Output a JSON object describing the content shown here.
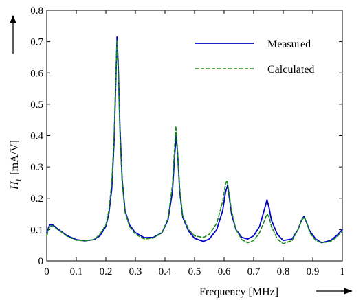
{
  "chart_data": {
    "type": "line",
    "title": "",
    "xlabel": "Frequency [MHz]",
    "ylabel_symbol": "H",
    "ylabel_subscript": "I",
    "ylabel_unit": "[mA/V]",
    "xlim": [
      0,
      1
    ],
    "ylim": [
      0,
      0.8
    ],
    "xticks": [
      0,
      0.1,
      0.2,
      0.3,
      0.4,
      0.5,
      0.6,
      0.7,
      0.8,
      0.9,
      1
    ],
    "xtick_labels": [
      "0",
      "0.1",
      "0.2",
      "0.3",
      "0.4",
      "0.5",
      "0.6",
      "0.7",
      "0.8",
      "0.9",
      "1"
    ],
    "yticks": [
      0,
      0.1,
      0.2,
      0.3,
      0.4,
      0.5,
      0.6,
      0.7,
      0.8
    ],
    "ytick_labels": [
      "0",
      "0.1",
      "0.2",
      "0.3",
      "0.4",
      "0.5",
      "0.6",
      "0.7",
      "0.8"
    ],
    "grid": false,
    "legend_position": "top-right",
    "series": [
      {
        "name": "Measured",
        "color": "#0000cc",
        "style": "solid",
        "points": [
          [
            0.0,
            0.09
          ],
          [
            0.01,
            0.115
          ],
          [
            0.02,
            0.115
          ],
          [
            0.04,
            0.1
          ],
          [
            0.07,
            0.08
          ],
          [
            0.1,
            0.068
          ],
          [
            0.13,
            0.064
          ],
          [
            0.16,
            0.068
          ],
          [
            0.18,
            0.08
          ],
          [
            0.2,
            0.11
          ],
          [
            0.21,
            0.15
          ],
          [
            0.22,
            0.23
          ],
          [
            0.228,
            0.38
          ],
          [
            0.234,
            0.58
          ],
          [
            0.238,
            0.715
          ],
          [
            0.242,
            0.62
          ],
          [
            0.248,
            0.42
          ],
          [
            0.255,
            0.26
          ],
          [
            0.265,
            0.16
          ],
          [
            0.28,
            0.115
          ],
          [
            0.3,
            0.09
          ],
          [
            0.33,
            0.074
          ],
          [
            0.36,
            0.075
          ],
          [
            0.39,
            0.09
          ],
          [
            0.41,
            0.13
          ],
          [
            0.425,
            0.22
          ],
          [
            0.433,
            0.34
          ],
          [
            0.438,
            0.4
          ],
          [
            0.443,
            0.34
          ],
          [
            0.45,
            0.22
          ],
          [
            0.46,
            0.14
          ],
          [
            0.48,
            0.095
          ],
          [
            0.5,
            0.072
          ],
          [
            0.53,
            0.062
          ],
          [
            0.55,
            0.07
          ],
          [
            0.575,
            0.1
          ],
          [
            0.595,
            0.16
          ],
          [
            0.605,
            0.22
          ],
          [
            0.612,
            0.242
          ],
          [
            0.618,
            0.2
          ],
          [
            0.625,
            0.15
          ],
          [
            0.64,
            0.1
          ],
          [
            0.66,
            0.075
          ],
          [
            0.68,
            0.07
          ],
          [
            0.7,
            0.08
          ],
          [
            0.72,
            0.11
          ],
          [
            0.735,
            0.16
          ],
          [
            0.745,
            0.195
          ],
          [
            0.752,
            0.17
          ],
          [
            0.76,
            0.13
          ],
          [
            0.78,
            0.085
          ],
          [
            0.8,
            0.065
          ],
          [
            0.83,
            0.07
          ],
          [
            0.85,
            0.1
          ],
          [
            0.862,
            0.13
          ],
          [
            0.87,
            0.142
          ],
          [
            0.878,
            0.125
          ],
          [
            0.89,
            0.095
          ],
          [
            0.91,
            0.07
          ],
          [
            0.93,
            0.058
          ],
          [
            0.96,
            0.065
          ],
          [
            0.98,
            0.08
          ],
          [
            1.0,
            0.1
          ]
        ]
      },
      {
        "name": "Calculated",
        "color": "#1a8a1a",
        "style": "dashed",
        "points": [
          [
            0.0,
            0.08
          ],
          [
            0.01,
            0.11
          ],
          [
            0.02,
            0.112
          ],
          [
            0.04,
            0.098
          ],
          [
            0.07,
            0.078
          ],
          [
            0.1,
            0.066
          ],
          [
            0.13,
            0.064
          ],
          [
            0.16,
            0.068
          ],
          [
            0.18,
            0.085
          ],
          [
            0.2,
            0.115
          ],
          [
            0.21,
            0.16
          ],
          [
            0.22,
            0.25
          ],
          [
            0.228,
            0.4
          ],
          [
            0.234,
            0.6
          ],
          [
            0.238,
            0.705
          ],
          [
            0.242,
            0.6
          ],
          [
            0.248,
            0.4
          ],
          [
            0.255,
            0.25
          ],
          [
            0.265,
            0.155
          ],
          [
            0.28,
            0.11
          ],
          [
            0.3,
            0.085
          ],
          [
            0.33,
            0.07
          ],
          [
            0.36,
            0.073
          ],
          [
            0.39,
            0.09
          ],
          [
            0.41,
            0.135
          ],
          [
            0.425,
            0.24
          ],
          [
            0.433,
            0.37
          ],
          [
            0.437,
            0.43
          ],
          [
            0.442,
            0.36
          ],
          [
            0.45,
            0.23
          ],
          [
            0.46,
            0.145
          ],
          [
            0.48,
            0.1
          ],
          [
            0.5,
            0.08
          ],
          [
            0.53,
            0.075
          ],
          [
            0.55,
            0.085
          ],
          [
            0.575,
            0.12
          ],
          [
            0.595,
            0.19
          ],
          [
            0.605,
            0.245
          ],
          [
            0.61,
            0.258
          ],
          [
            0.617,
            0.215
          ],
          [
            0.625,
            0.16
          ],
          [
            0.64,
            0.1
          ],
          [
            0.66,
            0.068
          ],
          [
            0.68,
            0.058
          ],
          [
            0.7,
            0.065
          ],
          [
            0.72,
            0.09
          ],
          [
            0.735,
            0.125
          ],
          [
            0.745,
            0.15
          ],
          [
            0.752,
            0.14
          ],
          [
            0.76,
            0.11
          ],
          [
            0.78,
            0.07
          ],
          [
            0.8,
            0.055
          ],
          [
            0.83,
            0.065
          ],
          [
            0.85,
            0.1
          ],
          [
            0.862,
            0.13
          ],
          [
            0.872,
            0.14
          ],
          [
            0.88,
            0.12
          ],
          [
            0.89,
            0.09
          ],
          [
            0.91,
            0.065
          ],
          [
            0.93,
            0.058
          ],
          [
            0.96,
            0.062
          ],
          [
            0.98,
            0.075
          ],
          [
            1.0,
            0.095
          ]
        ]
      }
    ]
  }
}
